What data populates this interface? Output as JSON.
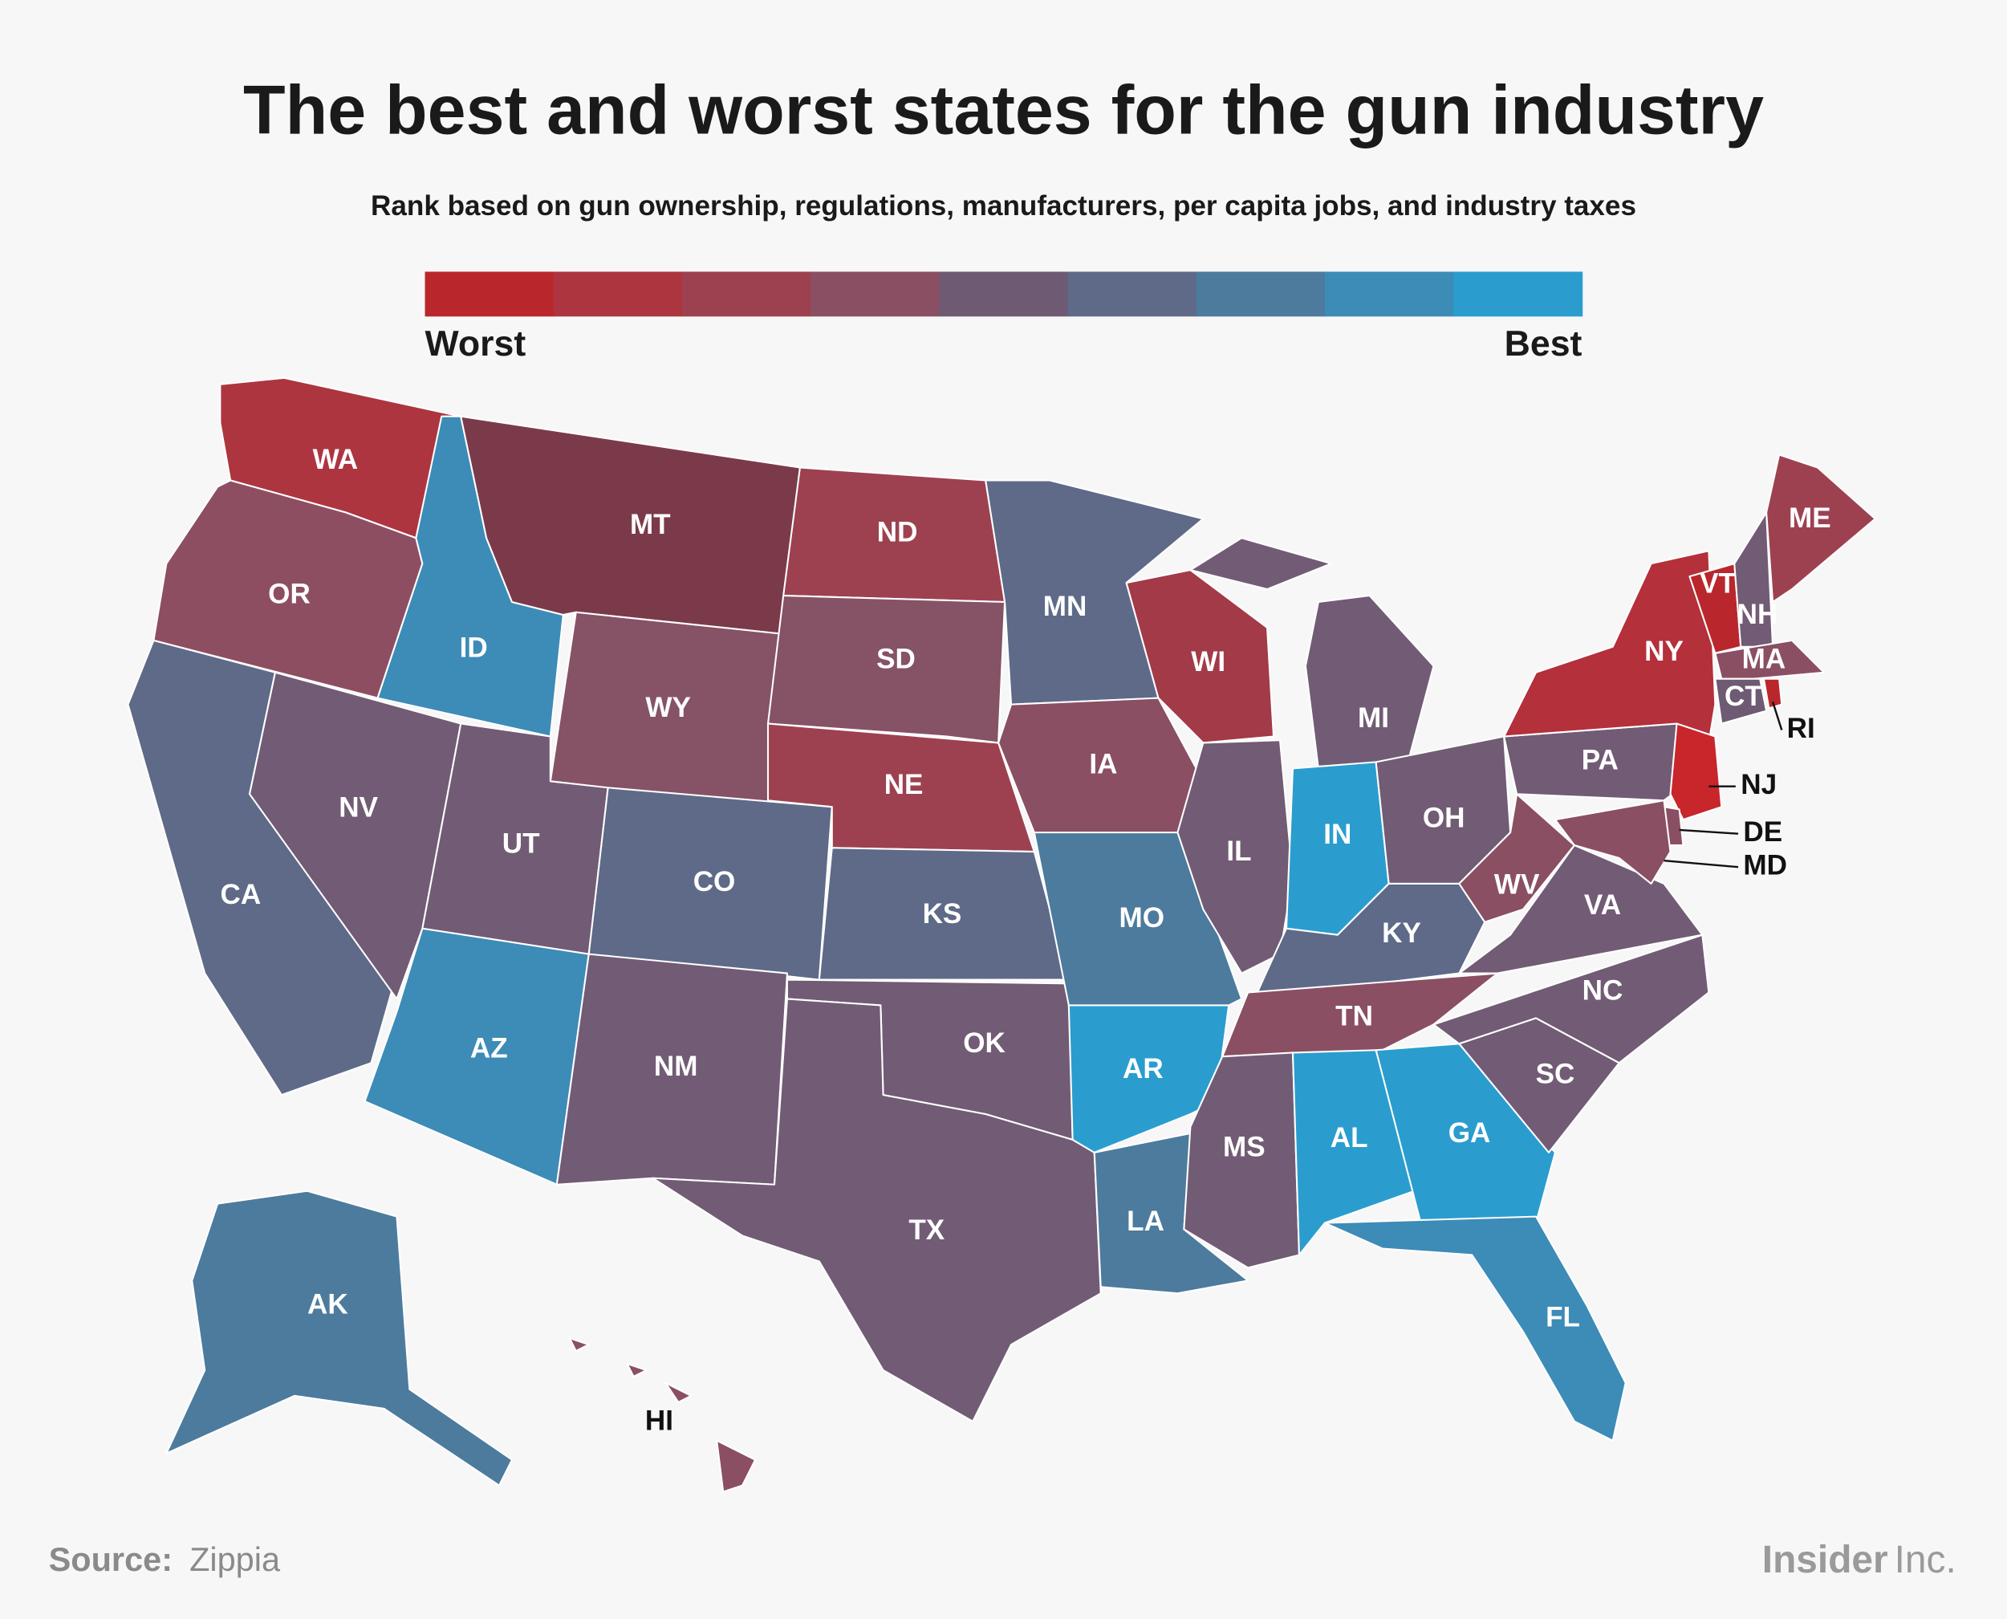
{
  "title": "The best and worst states for the gun industry",
  "subtitle": "Rank based on gun ownership, regulations, manufacturers, per capita jobs, and industry taxes",
  "legend": {
    "low": "Worst",
    "high": "Best",
    "colors": [
      "#b9272c",
      "#ad3540",
      "#9d4150",
      "#8a4f62",
      "#6e5a72",
      "#5e6a88",
      "#4c7b9d",
      "#3d8bb7",
      "#2a9dce"
    ]
  },
  "states": [
    {
      "label": "WA",
      "color": "#ad3540"
    },
    {
      "label": "OR",
      "color": "#8e4e62"
    },
    {
      "label": "ID",
      "color": "#3d8bb7"
    },
    {
      "label": "MT",
      "color": "#7b3a4a"
    },
    {
      "label": "WY",
      "color": "#865266"
    },
    {
      "label": "CA",
      "color": "#5e6a88"
    },
    {
      "label": "NV",
      "color": "#725b75"
    },
    {
      "label": "UT",
      "color": "#725b75"
    },
    {
      "label": "AZ",
      "color": "#3d8bb7"
    },
    {
      "label": "CO",
      "color": "#5e6a88"
    },
    {
      "label": "NM",
      "color": "#725b75"
    },
    {
      "label": "ND",
      "color": "#9d4150"
    },
    {
      "label": "SD",
      "color": "#865266"
    },
    {
      "label": "NE",
      "color": "#9d4150"
    },
    {
      "label": "KS",
      "color": "#5e6a88"
    },
    {
      "label": "OK",
      "color": "#725b75"
    },
    {
      "label": "TX",
      "color": "#725b75"
    },
    {
      "label": "MN",
      "color": "#5e6a88"
    },
    {
      "label": "IA",
      "color": "#8a4f62"
    },
    {
      "label": "MO",
      "color": "#4c7b9d"
    },
    {
      "label": "AR",
      "color": "#2a9dce"
    },
    {
      "label": "LA",
      "color": "#4c7b9d"
    },
    {
      "label": "WI",
      "color": "#a33a47"
    },
    {
      "label": "IL",
      "color": "#725b75"
    },
    {
      "label": "MI",
      "color": "#725b75"
    },
    {
      "label": "IN",
      "color": "#2a9dce"
    },
    {
      "label": "OH",
      "color": "#725b75"
    },
    {
      "label": "KY",
      "color": "#5e6a88"
    },
    {
      "label": "TN",
      "color": "#8a4f62"
    },
    {
      "label": "MS",
      "color": "#725b75"
    },
    {
      "label": "AL",
      "color": "#2a9dce"
    },
    {
      "label": "GA",
      "color": "#2a9dce"
    },
    {
      "label": "FL",
      "color": "#3d8bb7"
    },
    {
      "label": "SC",
      "color": "#725b75"
    },
    {
      "label": "NC",
      "color": "#725b75"
    },
    {
      "label": "VA",
      "color": "#725b75"
    },
    {
      "label": "WV",
      "color": "#8a4f62"
    },
    {
      "label": "PA",
      "color": "#725b75"
    },
    {
      "label": "NY",
      "color": "#b4303a"
    },
    {
      "label": "NJ",
      "color": "#c8262b"
    },
    {
      "label": "DE",
      "color": "#8a4f62"
    },
    {
      "label": "MD",
      "color": "#8a4f62"
    },
    {
      "label": "VT",
      "color": "#b9272c"
    },
    {
      "label": "NH",
      "color": "#725b75"
    },
    {
      "label": "ME",
      "color": "#9d4150"
    },
    {
      "label": "MA",
      "color": "#8a4f62"
    },
    {
      "label": "CT",
      "color": "#6e5a72"
    },
    {
      "label": "RI",
      "color": "#b9272c"
    },
    {
      "label": "AK",
      "color": "#4c7b9d"
    },
    {
      "label": "HI",
      "color": "#8a4f62"
    }
  ],
  "footer": {
    "source_label": "Source:",
    "source": "Zippia"
  },
  "logo": {
    "name": "Insider",
    "suffix": "Inc."
  }
}
